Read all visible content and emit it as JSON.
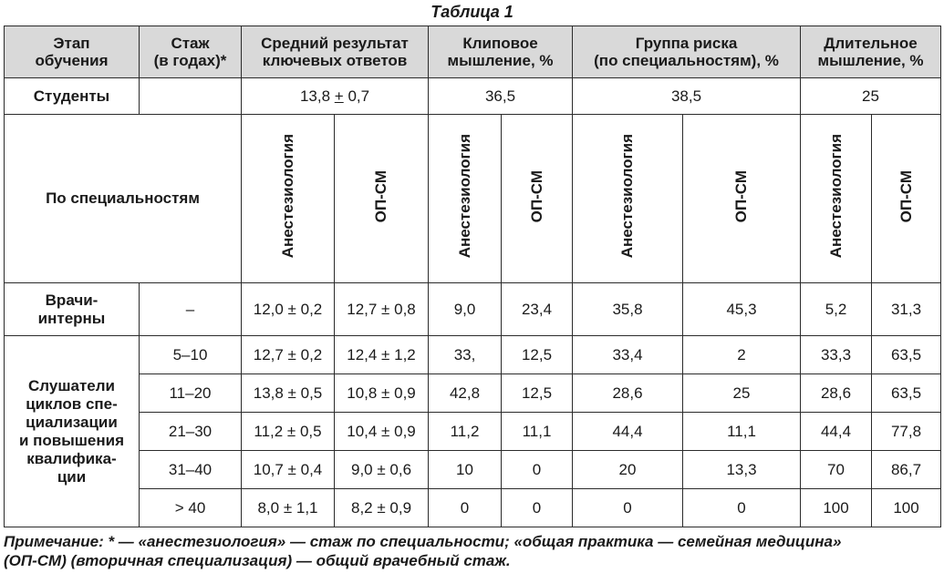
{
  "caption": "Таблица 1",
  "headers": {
    "stage": [
      "Этап",
      "обучения"
    ],
    "experience": [
      "Стаж",
      "(в годах)*"
    ],
    "avg_result": [
      "Средний результат",
      "ключевых ответов"
    ],
    "clip": [
      "Клиповое",
      "мышление, %"
    ],
    "risk": [
      "Группа риска",
      "(по специальностям), %"
    ],
    "long": [
      "Длительное",
      "мышление, %"
    ]
  },
  "students": {
    "label": "Студенты",
    "avg_value": "13,8",
    "avg_pm": "+",
    "avg_err": "0,7",
    "clip": "36,5",
    "risk": "38,5",
    "long": "25"
  },
  "by_specialty": {
    "label": "По специальностям",
    "sub_a": "Анестезиология",
    "sub_b": "ОП-СМ"
  },
  "interns": {
    "label": [
      "Врачи-",
      "интерны"
    ],
    "exp": "–",
    "cells": [
      "12,0 ± 0,2",
      "12,7 ± 0,8",
      "9,0",
      "23,4",
      "35,8",
      "45,3",
      "5,2",
      "31,3"
    ]
  },
  "listeners": {
    "label": [
      "Слушатели",
      "циклов спе-",
      "циализации",
      "и повышения",
      "квалифика-",
      "ции"
    ],
    "rows": [
      {
        "exp": "5–10",
        "cells": [
          "12,7 ± 0,2",
          "12,4 ± 1,2",
          "33,",
          "12,5",
          "33,4",
          "2",
          "33,3",
          "63,5"
        ]
      },
      {
        "exp": "11–20",
        "cells": [
          "13,8 ± 0,5",
          "10,8 ± 0,9",
          "42,8",
          "12,5",
          "28,6",
          "25",
          "28,6",
          "63,5"
        ]
      },
      {
        "exp": "21–30",
        "cells": [
          "11,2 ± 0,5",
          "10,4 ± 0,9",
          "11,2",
          "11,1",
          "44,4",
          "11,1",
          "44,4",
          "77,8"
        ]
      },
      {
        "exp": "31–40",
        "cells": [
          "10,7 ± 0,4",
          "9,0 ± 0,6",
          "10",
          "0",
          "20",
          "13,3",
          "70",
          "86,7"
        ]
      },
      {
        "exp": "> 40",
        "cells": [
          "8,0 ± 1,1",
          "8,2 ± 0,9",
          "0",
          "0",
          "0",
          "0",
          "100",
          "100"
        ]
      }
    ]
  },
  "note": [
    "Примечание: * — «анестезиология» — стаж по специальности; «общая практика — семейная медицина»",
    "(ОП-СМ) (вторичная специализация) — общий врачебный стаж."
  ]
}
